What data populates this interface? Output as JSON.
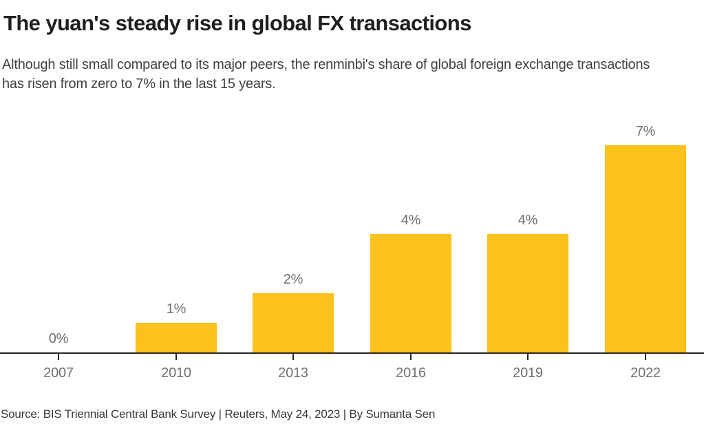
{
  "header": {
    "title": "The yuan's steady rise in global FX transactions",
    "subtitle": "Although still small compared to its major peers, the renminbi's share of global foreign exchange transactions has risen from zero to 7% in the last 15 years."
  },
  "chart_data": {
    "type": "bar",
    "categories": [
      "2007",
      "2010",
      "2013",
      "2016",
      "2019",
      "2022"
    ],
    "values": [
      0,
      1,
      2,
      4,
      4,
      7
    ],
    "bar_labels": [
      "0%",
      "1%",
      "2%",
      "4%",
      "4%",
      "7%"
    ],
    "title": "The yuan's steady rise in global FX transactions",
    "xlabel": "",
    "ylabel": "",
    "ylim": [
      0,
      8
    ],
    "grid": false,
    "legend": false,
    "bar_color": "#FBC11D"
  },
  "footer": {
    "source": "Source: BIS Triennial Central Bank Survey | Reuters, May 24, 2023 | By Sumanta Sen"
  },
  "colors": {
    "background": "#FFFFFF",
    "bar": "#FBC11D",
    "title": "#1F1F1F",
    "subtitle": "#404040",
    "axis": "#262626",
    "value_label": "#6E6E6E",
    "tick_label": "#6F6F6F",
    "source": "#383838"
  }
}
